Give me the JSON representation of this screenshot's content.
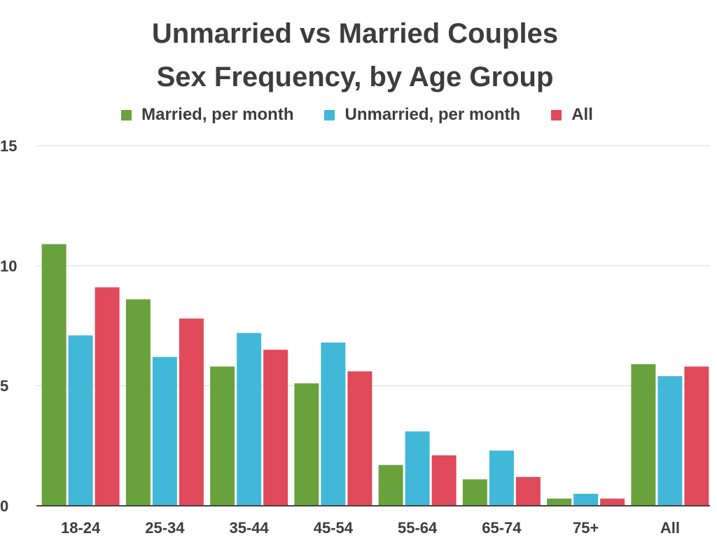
{
  "colors": {
    "married": "#69a23c",
    "unmarried": "#42b8d8",
    "all": "#e04a5a",
    "grid": "#d9d9d9",
    "axis": "#444444",
    "text": "#3d3d3d"
  },
  "chart_data": {
    "type": "bar",
    "title": "Unmarried vs Married Couples Sex Frequency, by Age Group",
    "title_lines": [
      "Unmarried vs Married Couples",
      "Sex Frequency, by Age Group"
    ],
    "xlabel": "",
    "ylabel": "",
    "categories": [
      "18-24",
      "25-34",
      "35-44",
      "45-54",
      "55-64",
      "65-74",
      "75+",
      "All"
    ],
    "series": [
      {
        "name": "Married, per month",
        "color_key": "married",
        "values": [
          10.9,
          8.6,
          5.8,
          5.1,
          1.7,
          1.1,
          0.3,
          5.9
        ]
      },
      {
        "name": "Unmarried, per month",
        "color_key": "unmarried",
        "values": [
          7.1,
          6.2,
          7.2,
          6.8,
          3.1,
          2.3,
          0.5,
          5.4
        ]
      },
      {
        "name": "All",
        "color_key": "all",
        "values": [
          9.1,
          7.8,
          6.5,
          5.6,
          2.1,
          1.2,
          0.3,
          5.8
        ]
      }
    ],
    "ylim": [
      0,
      15
    ],
    "yticks": [
      0,
      5,
      10,
      15
    ],
    "ytick_labels": [
      "0",
      "5",
      "10",
      "15"
    ],
    "grid": true,
    "legend_position": "top-center"
  }
}
